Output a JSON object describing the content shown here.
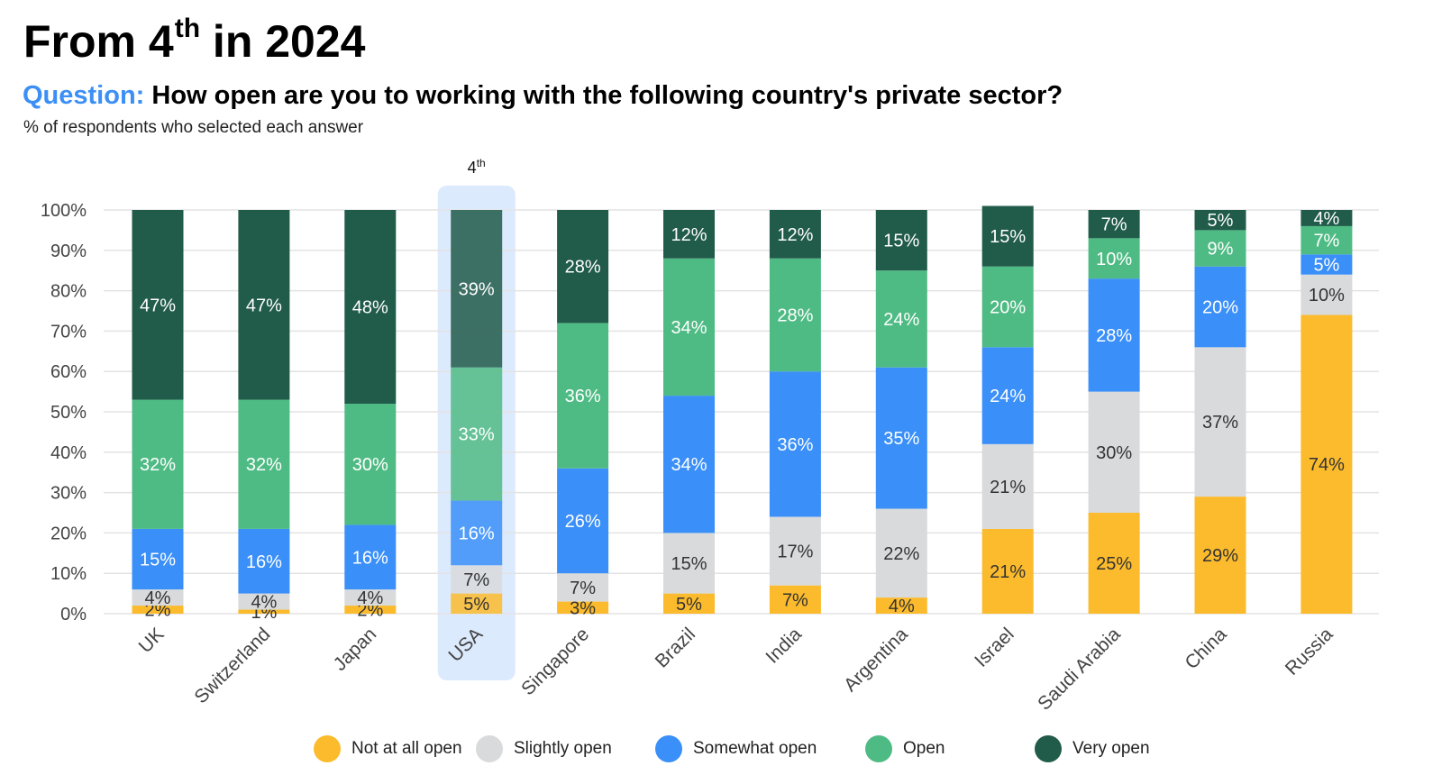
{
  "header": {
    "title_main": "From 4",
    "title_sup": "th",
    "title_end": " in 2024",
    "question_label": "Question:",
    "question_text": " How open are you to working with the following country's private sector?",
    "subtitle": "% of respondents who selected each answer"
  },
  "colors": {
    "not_at_all_open": "#fbbb2c",
    "slightly_open": "#d8dadc",
    "somewhat_open": "#3a8ff8",
    "open": "#4fbb84",
    "very_open": "#215b4a",
    "highlight_bg": "#dceafd",
    "gridline": "#e3e3e3"
  },
  "highlight": {
    "category": "USA",
    "rank_main": "4",
    "rank_sup": "th"
  },
  "chart_data": {
    "type": "bar",
    "stacked": true,
    "categories": [
      "UK",
      "Switzerland",
      "Japan",
      "USA",
      "Singapore",
      "Brazil",
      "India",
      "Argentina",
      "Israel",
      "Saudi Arabia",
      "China",
      "Russia"
    ],
    "series": [
      {
        "name": "Not at all open",
        "color": "#fbbb2c",
        "values": [
          2,
          1,
          2,
          5,
          3,
          5,
          7,
          4,
          21,
          25,
          29,
          74
        ]
      },
      {
        "name": "Slightly open",
        "color": "#d8dadc",
        "values": [
          4,
          4,
          4,
          7,
          7,
          15,
          17,
          22,
          21,
          30,
          37,
          10
        ]
      },
      {
        "name": "Somewhat open",
        "color": "#3a8ff8",
        "values": [
          15,
          16,
          16,
          16,
          26,
          34,
          36,
          35,
          24,
          28,
          20,
          5
        ]
      },
      {
        "name": "Open",
        "color": "#4fbb84",
        "values": [
          32,
          32,
          30,
          33,
          36,
          34,
          28,
          24,
          20,
          10,
          9,
          7
        ]
      },
      {
        "name": "Very open",
        "color": "#215b4a",
        "values": [
          47,
          47,
          48,
          39,
          28,
          12,
          12,
          15,
          15,
          7,
          5,
          4
        ]
      }
    ],
    "y_ticks": [
      "0%",
      "10%",
      "20%",
      "30%",
      "40%",
      "50%",
      "60%",
      "70%",
      "80%",
      "90%",
      "100%"
    ],
    "ylim": [
      0,
      100
    ],
    "grid": true,
    "legend_position": "bottom"
  }
}
